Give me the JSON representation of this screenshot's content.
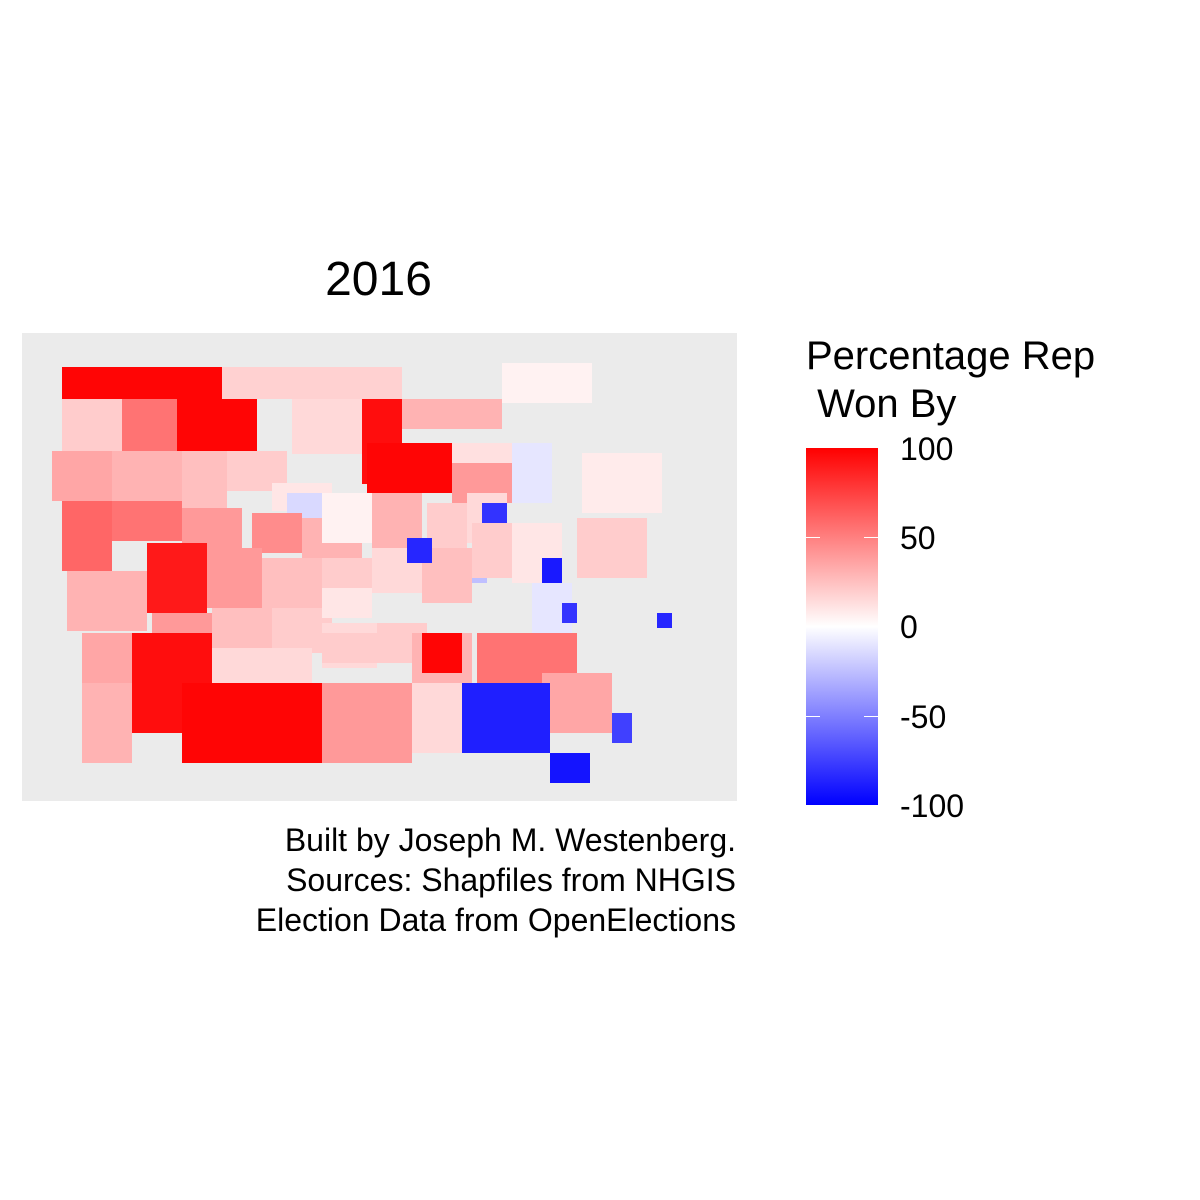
{
  "title": "2016",
  "legend": {
    "title_line1": "Percentage Rep",
    "title_line2": " Won By",
    "ticks": [
      "100",
      "50",
      "0",
      "-50",
      "-100"
    ],
    "scale": {
      "min": -100,
      "max": 100,
      "low_color": "#0000ff",
      "mid_color": "#ffffff",
      "high_color": "#ff0000"
    }
  },
  "caption": {
    "line1": "Built by Joseph M. Westenberg.",
    "line2": "Sources: Shapfiles from NHGIS",
    "line3": "Election Data from OpenElections"
  },
  "map": {
    "background": "#ebebeb",
    "region_values": [
      98,
      55,
      20,
      98,
      18,
      15,
      95,
      30,
      5,
      -10,
      8,
      98,
      12,
      40,
      35,
      30,
      25,
      20,
      10,
      -15,
      30,
      60,
      55,
      40,
      45,
      5,
      30,
      20,
      15,
      -25,
      30,
      90,
      40,
      25,
      20,
      15,
      25,
      20,
      -10,
      10,
      20,
      35,
      40,
      25,
      20,
      15,
      20,
      10,
      95,
      15,
      95,
      98,
      20,
      30,
      55,
      35,
      40,
      -88,
      15,
      -92,
      30,
      98,
      -80,
      -85,
      -90,
      -80,
      -85,
      -75
    ]
  }
}
